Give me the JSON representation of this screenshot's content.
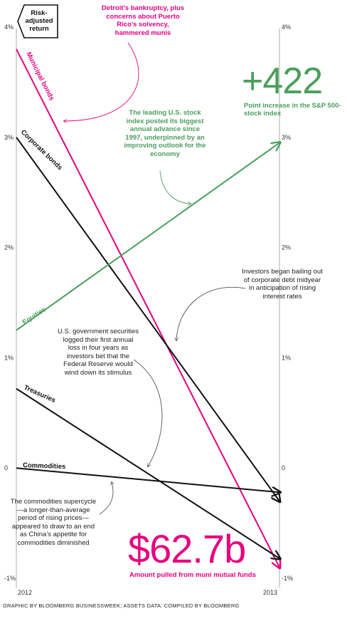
{
  "badge": {
    "text": "Risk-adjusted return"
  },
  "chart_data": {
    "type": "line",
    "x": [
      "2012",
      "2013"
    ],
    "ylim": [
      -1,
      4
    ],
    "yticks": [
      "4%",
      "3%",
      "2%",
      "1%",
      "0",
      "-1%"
    ],
    "ytick_values": [
      4,
      3,
      2,
      1,
      0,
      -1
    ],
    "series": [
      {
        "name": "Municipal bonds",
        "values": [
          3.8,
          -0.9
        ],
        "color": "#e6007e"
      },
      {
        "name": "Corporate bonds",
        "values": [
          3.0,
          -0.3
        ],
        "color": "#111111"
      },
      {
        "name": "Equities",
        "values": [
          1.25,
          2.95
        ],
        "color": "#4a9e5c"
      },
      {
        "name": "Treasuries",
        "values": [
          0.72,
          -0.82
        ],
        "color": "#111111"
      },
      {
        "name": "Commodities",
        "values": [
          0.0,
          -0.22
        ],
        "color": "#111111"
      }
    ]
  },
  "annotations": {
    "muni": "Detroit’s bankruptcy, plus concerns about Puerto Rico’s solvency, hammered munis",
    "equities": "The leading U.S. stock index posted its biggest annual advance since 1997, underpinned by an improving outlook for the economy",
    "corporate": "Investors began bailing out of corporate debt midyear in anticipation of rising interest rates",
    "treasuries": "U.S. government securities logged their first annual loss in four years as investors bet that the Federal Reserve would wind down its stimulus",
    "commodities": "The commodities supercycle—a longer-than-average period of rising prices—appeared to draw to an end as China’s appetite for commodities diminished"
  },
  "stats": {
    "sp_value": "+422",
    "sp_desc": "Point increase in the S&P 500-stock index",
    "muni_value": "$62.7b",
    "muni_desc": "Amount pulled from muni mutual funds"
  },
  "footer": "GRAPHIC BY BLOOMBERG BUSINESSWEEK; ASSETS DATA: COMPILED BY BLOOMBERG"
}
